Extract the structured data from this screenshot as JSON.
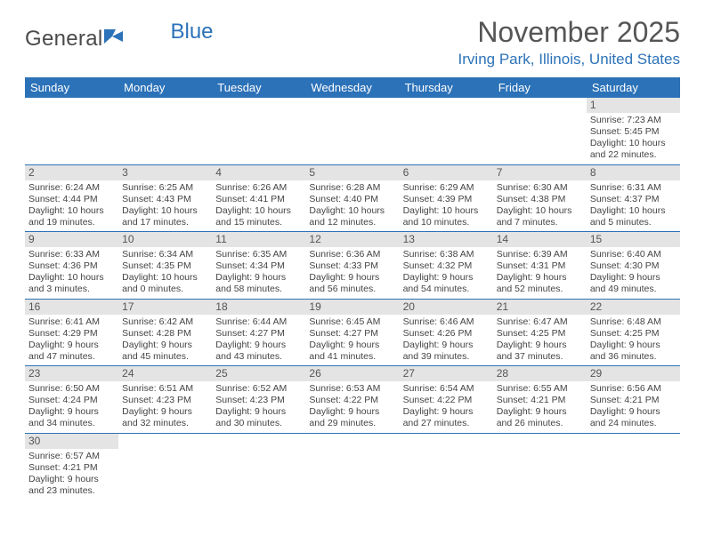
{
  "logo": {
    "text1": "General",
    "text2": "Blue"
  },
  "title": "November 2025",
  "location": "Irving Park, Illinois, United States",
  "colors": {
    "header_bg": "#2c72b8",
    "header_text": "#ffffff",
    "daynum_bg": "#e4e4e4",
    "border": "#2c72b8",
    "body_text": "#444444",
    "title_text": "#555555",
    "location_text": "#2c72b8"
  },
  "dayHeaders": [
    "Sunday",
    "Monday",
    "Tuesday",
    "Wednesday",
    "Thursday",
    "Friday",
    "Saturday"
  ],
  "weeks": [
    [
      null,
      null,
      null,
      null,
      null,
      null,
      {
        "n": "1",
        "sunrise": "Sunrise: 7:23 AM",
        "sunset": "Sunset: 5:45 PM",
        "daylight1": "Daylight: 10 hours",
        "daylight2": "and 22 minutes."
      }
    ],
    [
      {
        "n": "2",
        "sunrise": "Sunrise: 6:24 AM",
        "sunset": "Sunset: 4:44 PM",
        "daylight1": "Daylight: 10 hours",
        "daylight2": "and 19 minutes."
      },
      {
        "n": "3",
        "sunrise": "Sunrise: 6:25 AM",
        "sunset": "Sunset: 4:43 PM",
        "daylight1": "Daylight: 10 hours",
        "daylight2": "and 17 minutes."
      },
      {
        "n": "4",
        "sunrise": "Sunrise: 6:26 AM",
        "sunset": "Sunset: 4:41 PM",
        "daylight1": "Daylight: 10 hours",
        "daylight2": "and 15 minutes."
      },
      {
        "n": "5",
        "sunrise": "Sunrise: 6:28 AM",
        "sunset": "Sunset: 4:40 PM",
        "daylight1": "Daylight: 10 hours",
        "daylight2": "and 12 minutes."
      },
      {
        "n": "6",
        "sunrise": "Sunrise: 6:29 AM",
        "sunset": "Sunset: 4:39 PM",
        "daylight1": "Daylight: 10 hours",
        "daylight2": "and 10 minutes."
      },
      {
        "n": "7",
        "sunrise": "Sunrise: 6:30 AM",
        "sunset": "Sunset: 4:38 PM",
        "daylight1": "Daylight: 10 hours",
        "daylight2": "and 7 minutes."
      },
      {
        "n": "8",
        "sunrise": "Sunrise: 6:31 AM",
        "sunset": "Sunset: 4:37 PM",
        "daylight1": "Daylight: 10 hours",
        "daylight2": "and 5 minutes."
      }
    ],
    [
      {
        "n": "9",
        "sunrise": "Sunrise: 6:33 AM",
        "sunset": "Sunset: 4:36 PM",
        "daylight1": "Daylight: 10 hours",
        "daylight2": "and 3 minutes."
      },
      {
        "n": "10",
        "sunrise": "Sunrise: 6:34 AM",
        "sunset": "Sunset: 4:35 PM",
        "daylight1": "Daylight: 10 hours",
        "daylight2": "and 0 minutes."
      },
      {
        "n": "11",
        "sunrise": "Sunrise: 6:35 AM",
        "sunset": "Sunset: 4:34 PM",
        "daylight1": "Daylight: 9 hours",
        "daylight2": "and 58 minutes."
      },
      {
        "n": "12",
        "sunrise": "Sunrise: 6:36 AM",
        "sunset": "Sunset: 4:33 PM",
        "daylight1": "Daylight: 9 hours",
        "daylight2": "and 56 minutes."
      },
      {
        "n": "13",
        "sunrise": "Sunrise: 6:38 AM",
        "sunset": "Sunset: 4:32 PM",
        "daylight1": "Daylight: 9 hours",
        "daylight2": "and 54 minutes."
      },
      {
        "n": "14",
        "sunrise": "Sunrise: 6:39 AM",
        "sunset": "Sunset: 4:31 PM",
        "daylight1": "Daylight: 9 hours",
        "daylight2": "and 52 minutes."
      },
      {
        "n": "15",
        "sunrise": "Sunrise: 6:40 AM",
        "sunset": "Sunset: 4:30 PM",
        "daylight1": "Daylight: 9 hours",
        "daylight2": "and 49 minutes."
      }
    ],
    [
      {
        "n": "16",
        "sunrise": "Sunrise: 6:41 AM",
        "sunset": "Sunset: 4:29 PM",
        "daylight1": "Daylight: 9 hours",
        "daylight2": "and 47 minutes."
      },
      {
        "n": "17",
        "sunrise": "Sunrise: 6:42 AM",
        "sunset": "Sunset: 4:28 PM",
        "daylight1": "Daylight: 9 hours",
        "daylight2": "and 45 minutes."
      },
      {
        "n": "18",
        "sunrise": "Sunrise: 6:44 AM",
        "sunset": "Sunset: 4:27 PM",
        "daylight1": "Daylight: 9 hours",
        "daylight2": "and 43 minutes."
      },
      {
        "n": "19",
        "sunrise": "Sunrise: 6:45 AM",
        "sunset": "Sunset: 4:27 PM",
        "daylight1": "Daylight: 9 hours",
        "daylight2": "and 41 minutes."
      },
      {
        "n": "20",
        "sunrise": "Sunrise: 6:46 AM",
        "sunset": "Sunset: 4:26 PM",
        "daylight1": "Daylight: 9 hours",
        "daylight2": "and 39 minutes."
      },
      {
        "n": "21",
        "sunrise": "Sunrise: 6:47 AM",
        "sunset": "Sunset: 4:25 PM",
        "daylight1": "Daylight: 9 hours",
        "daylight2": "and 37 minutes."
      },
      {
        "n": "22",
        "sunrise": "Sunrise: 6:48 AM",
        "sunset": "Sunset: 4:25 PM",
        "daylight1": "Daylight: 9 hours",
        "daylight2": "and 36 minutes."
      }
    ],
    [
      {
        "n": "23",
        "sunrise": "Sunrise: 6:50 AM",
        "sunset": "Sunset: 4:24 PM",
        "daylight1": "Daylight: 9 hours",
        "daylight2": "and 34 minutes."
      },
      {
        "n": "24",
        "sunrise": "Sunrise: 6:51 AM",
        "sunset": "Sunset: 4:23 PM",
        "daylight1": "Daylight: 9 hours",
        "daylight2": "and 32 minutes."
      },
      {
        "n": "25",
        "sunrise": "Sunrise: 6:52 AM",
        "sunset": "Sunset: 4:23 PM",
        "daylight1": "Daylight: 9 hours",
        "daylight2": "and 30 minutes."
      },
      {
        "n": "26",
        "sunrise": "Sunrise: 6:53 AM",
        "sunset": "Sunset: 4:22 PM",
        "daylight1": "Daylight: 9 hours",
        "daylight2": "and 29 minutes."
      },
      {
        "n": "27",
        "sunrise": "Sunrise: 6:54 AM",
        "sunset": "Sunset: 4:22 PM",
        "daylight1": "Daylight: 9 hours",
        "daylight2": "and 27 minutes."
      },
      {
        "n": "28",
        "sunrise": "Sunrise: 6:55 AM",
        "sunset": "Sunset: 4:21 PM",
        "daylight1": "Daylight: 9 hours",
        "daylight2": "and 26 minutes."
      },
      {
        "n": "29",
        "sunrise": "Sunrise: 6:56 AM",
        "sunset": "Sunset: 4:21 PM",
        "daylight1": "Daylight: 9 hours",
        "daylight2": "and 24 minutes."
      }
    ],
    [
      {
        "n": "30",
        "sunrise": "Sunrise: 6:57 AM",
        "sunset": "Sunset: 4:21 PM",
        "daylight1": "Daylight: 9 hours",
        "daylight2": "and 23 minutes."
      },
      null,
      null,
      null,
      null,
      null,
      null
    ]
  ]
}
